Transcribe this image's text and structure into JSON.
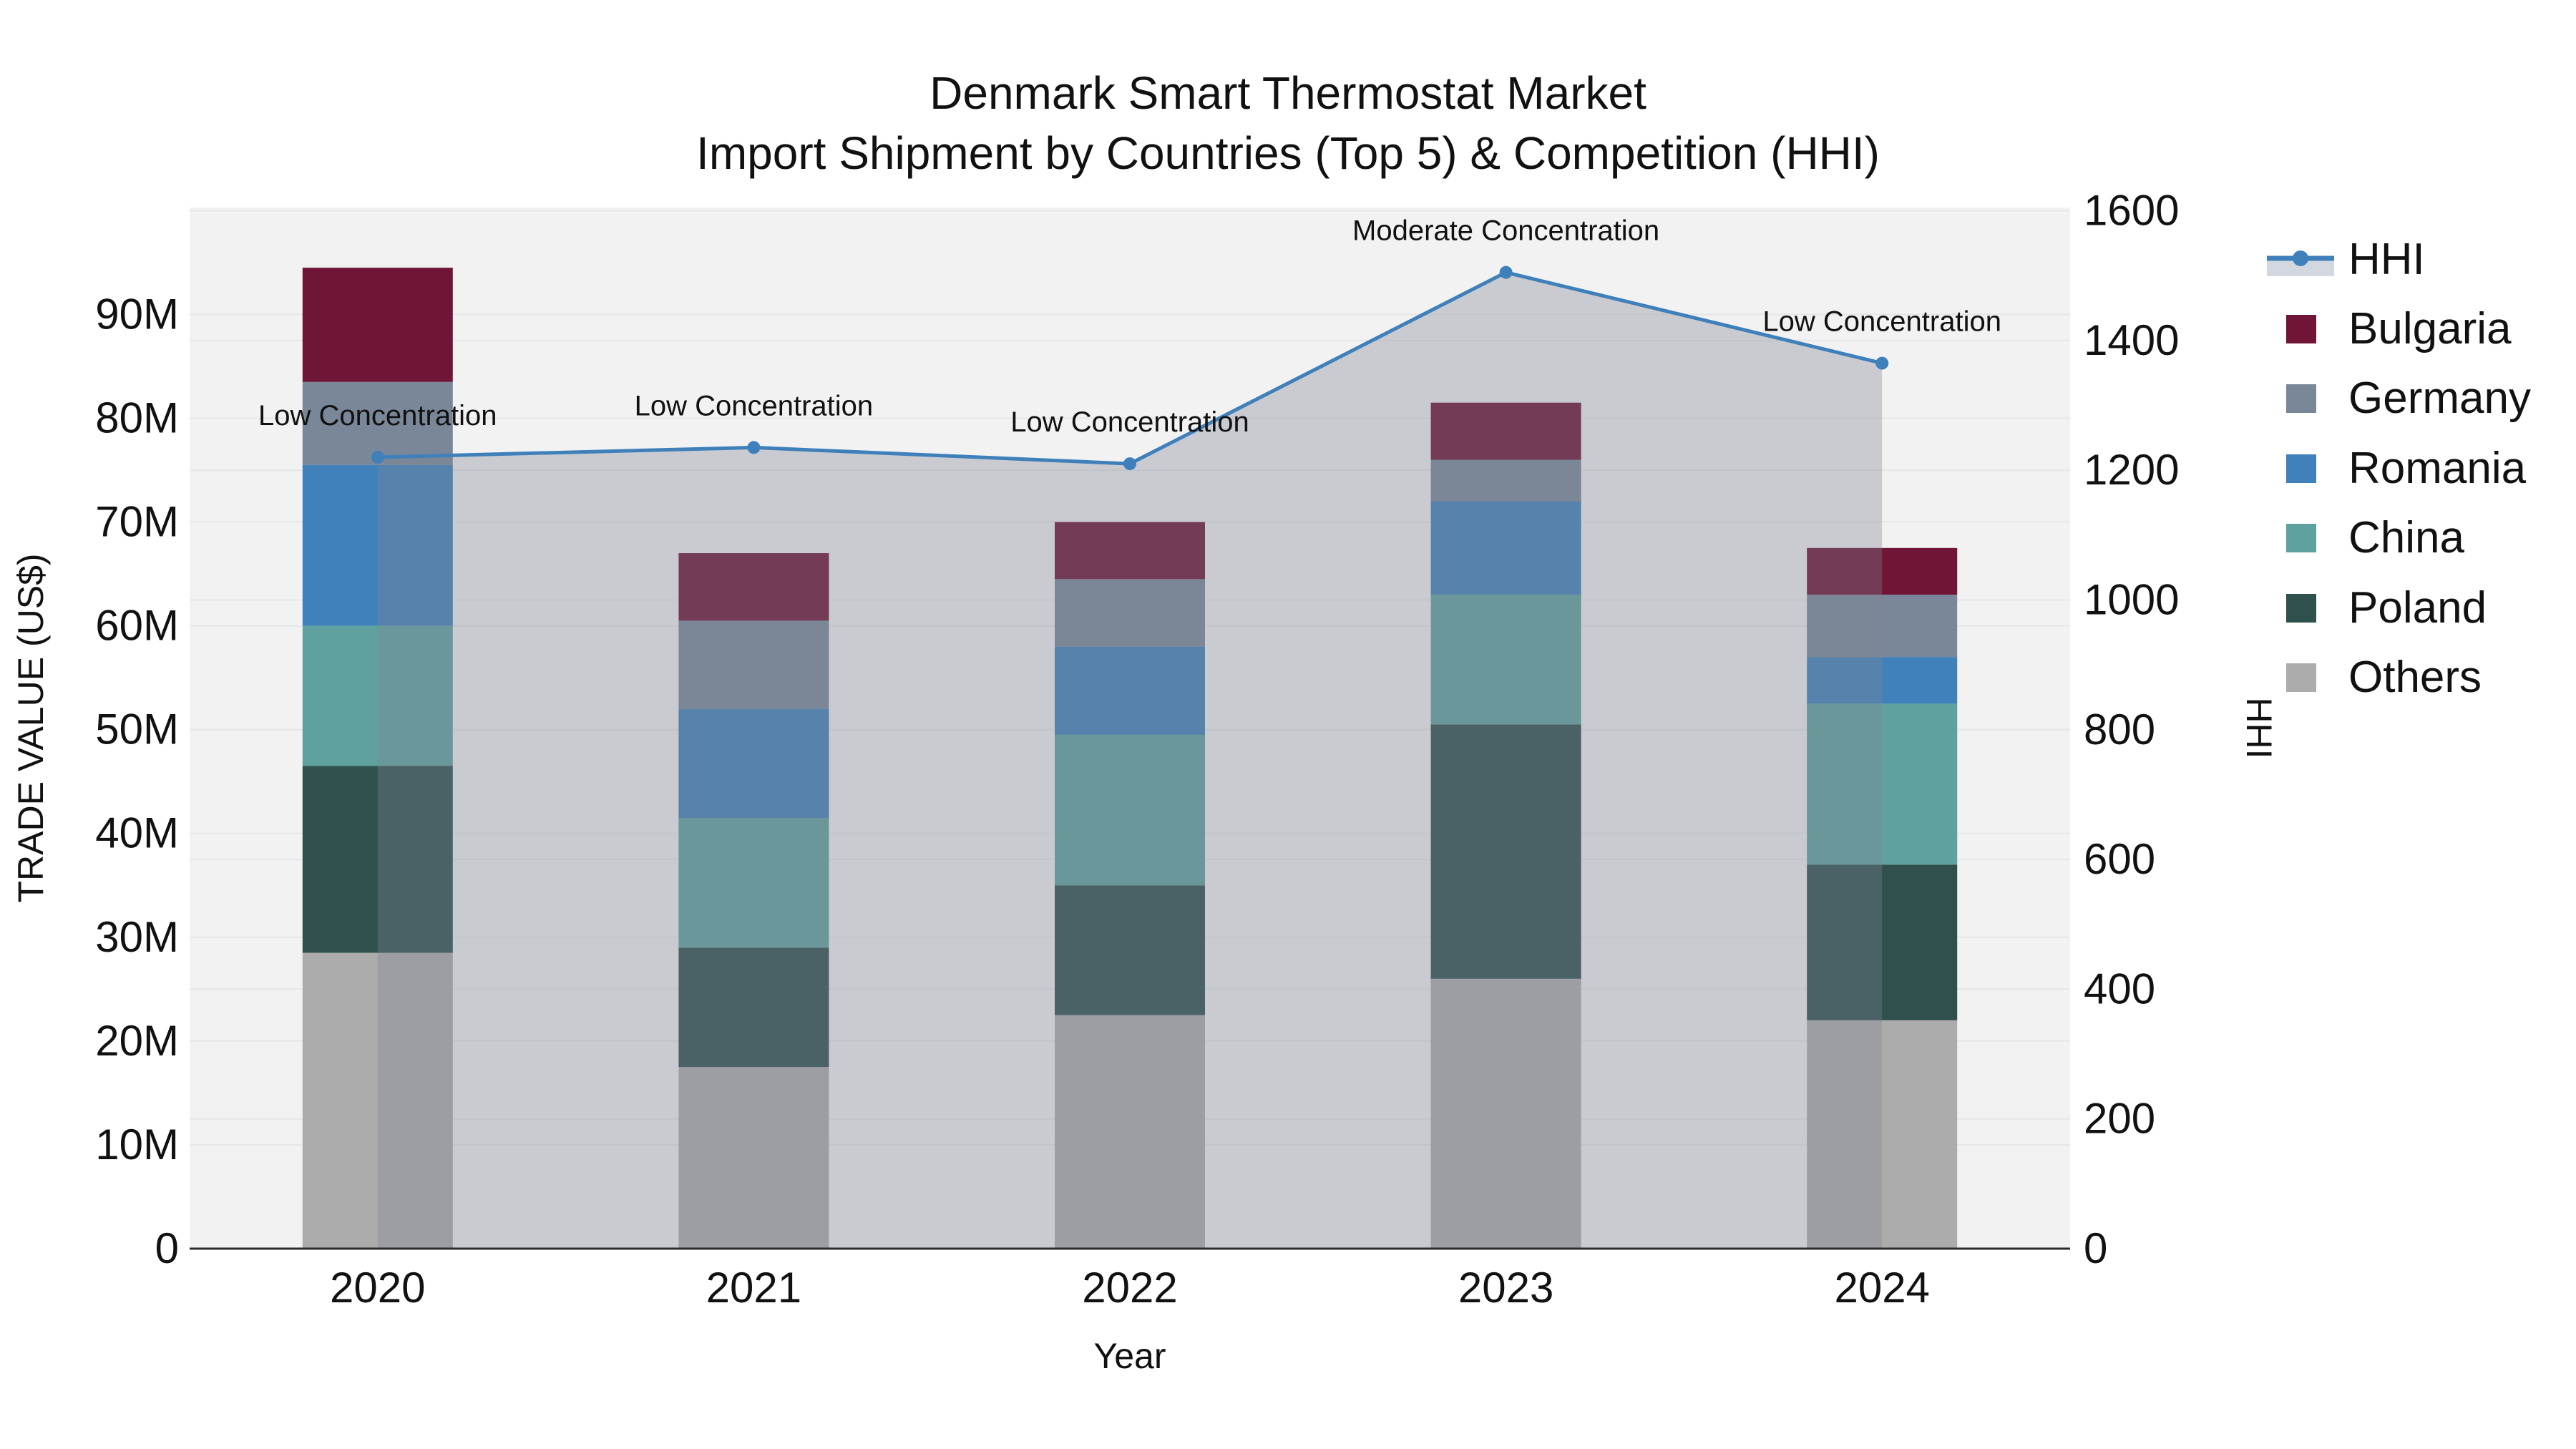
{
  "title": {
    "line1": "Denmark Smart Thermostat Market",
    "line2": "Import Shipment by Countries (Top 5) & Competition (HHI)"
  },
  "chart_data": {
    "type": "bar+line",
    "x": [
      2020,
      2021,
      2022,
      2023,
      2024
    ],
    "xlabel": "Year",
    "stack_note": "bars stacked bottom-to-top: Others, Poland, China, Romania, Germany, Bulgaria; values in millions US$",
    "series": [
      {
        "name": "Bulgaria",
        "type": "bar",
        "color": "#6F1538",
        "values": [
          11,
          6.5,
          5.5,
          5.5,
          4.5
        ]
      },
      {
        "name": "Germany",
        "type": "bar",
        "color": "#7A8799",
        "values": [
          8,
          8.5,
          6.5,
          4,
          6
        ]
      },
      {
        "name": "Romania",
        "type": "bar",
        "color": "#4181BB",
        "values": [
          15.5,
          10.5,
          8.5,
          9,
          4.5
        ]
      },
      {
        "name": "China",
        "type": "bar",
        "color": "#5EA19F",
        "values": [
          13.5,
          12.5,
          14.5,
          12.5,
          15.5
        ]
      },
      {
        "name": "Poland",
        "type": "bar",
        "color": "#2F504D",
        "values": [
          18,
          11.5,
          12.5,
          24.5,
          15
        ]
      },
      {
        "name": "Others",
        "type": "bar",
        "color": "#ACACAC",
        "values": [
          28.5,
          17.5,
          22.5,
          26,
          22
        ]
      }
    ],
    "bar_totals_m": [
      94.5,
      67,
      70,
      81.5,
      67.5
    ],
    "hhi": {
      "name": "HHI",
      "type": "line",
      "color": "#4080BA",
      "area_color": "rgba(126,131,145,0.35)",
      "legend_band_color": "#D3D7E0",
      "values": [
        1220,
        1235,
        1210,
        1505,
        1365
      ],
      "annotations": [
        "Low Concentration",
        "Low Concentration",
        "Low Concentration",
        "Moderate Concentration",
        "Low Concentration"
      ]
    },
    "left_axis": {
      "label": "TRADE VALUE (US$)",
      "tick_values": [
        0,
        10,
        20,
        30,
        40,
        50,
        60,
        70,
        80,
        90
      ],
      "tick_labels": [
        "0",
        "10M",
        "20M",
        "30M",
        "40M",
        "50M",
        "60M",
        "70M",
        "80M",
        "90M"
      ],
      "range_m": [
        0,
        100.3
      ]
    },
    "right_axis": {
      "label": "HHI",
      "tick_values": [
        0,
        200,
        400,
        600,
        800,
        1000,
        1200,
        1400,
        1600
      ],
      "tick_labels": [
        "0",
        "200",
        "400",
        "600",
        "800",
        "1000",
        "1200",
        "1400",
        "1600"
      ],
      "range": [
        0,
        1605
      ]
    },
    "grid": "on",
    "plot_bg": "#F2F2F3",
    "gridline_color": "#E6E6E9",
    "axisline_color": "#2B2B2B",
    "legend_position": "right"
  },
  "legend": {
    "items": [
      {
        "label": "HHI"
      },
      {
        "label": "Bulgaria"
      },
      {
        "label": "Germany"
      },
      {
        "label": "Romania"
      },
      {
        "label": "China"
      },
      {
        "label": "Poland"
      },
      {
        "label": "Others"
      }
    ]
  }
}
